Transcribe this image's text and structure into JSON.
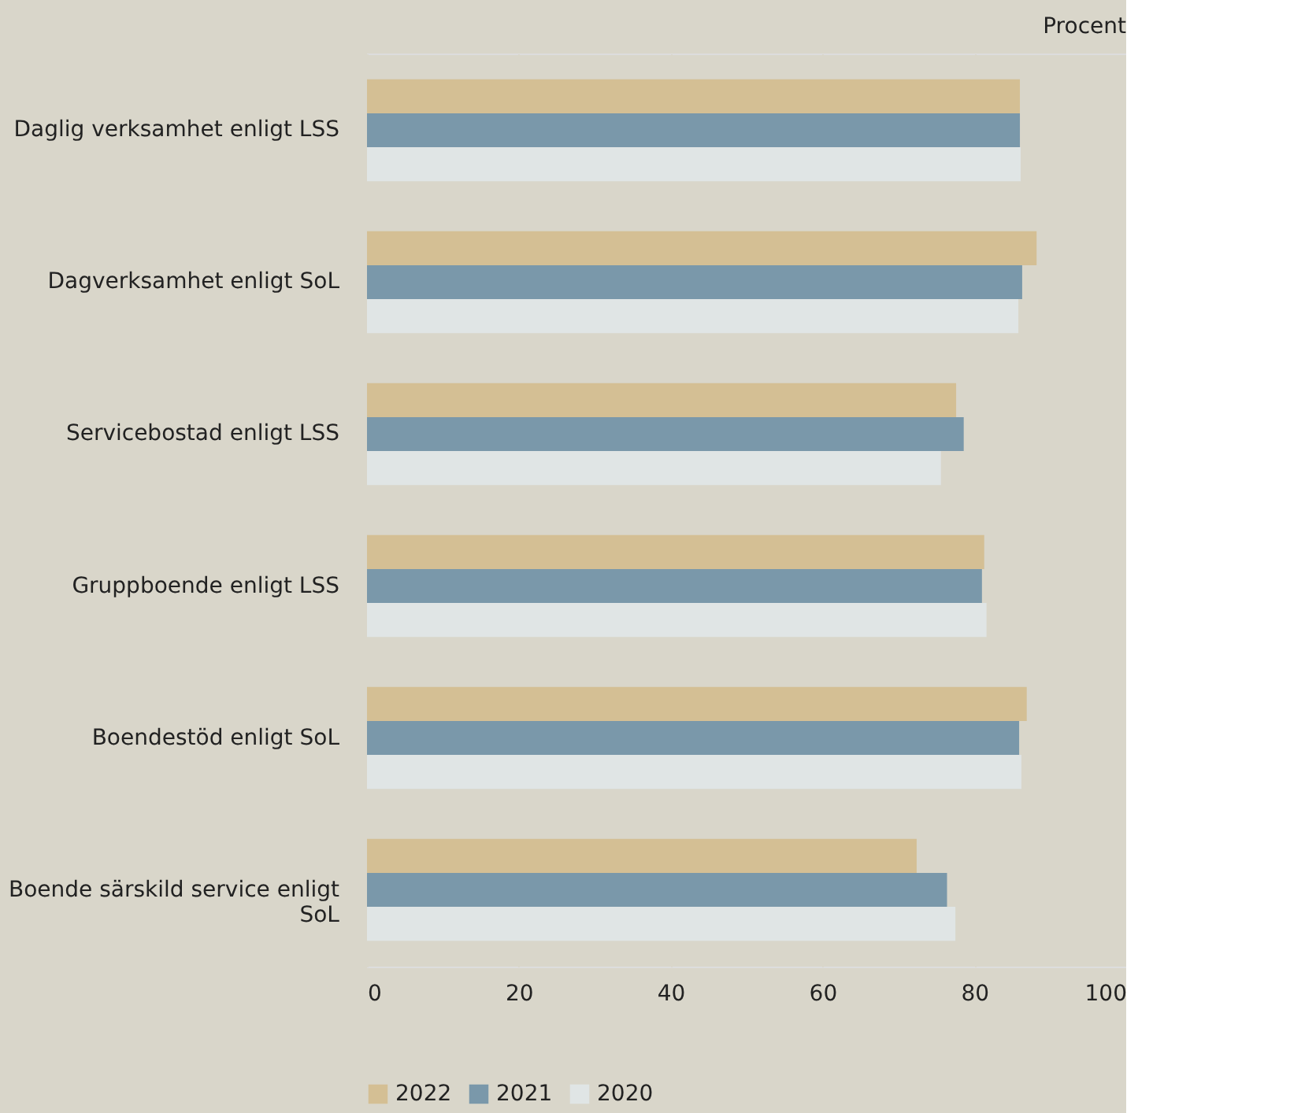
{
  "chart_data": {
    "type": "bar",
    "orientation": "horizontal",
    "annotations": [
      "Procent"
    ],
    "categories": [
      "Daglig verksamhet enligt LSS",
      "Dagverksamhet enligt SoL",
      "Servicebostad enligt LSS",
      "Gruppboende enligt LSS",
      "Boendestöd enligt SoL",
      "Boende särskild service enligt SoL"
    ],
    "series": [
      {
        "name": "2022",
        "color": "#d4bf94",
        "values": [
          86.0,
          88.2,
          77.6,
          81.3,
          86.9,
          72.4
        ]
      },
      {
        "name": "2021",
        "color": "#7a98aa",
        "values": [
          86.0,
          86.3,
          78.6,
          81.0,
          85.9,
          76.4
        ]
      },
      {
        "name": "2020",
        "color": "#e0e5e5",
        "values": [
          86.1,
          85.8,
          75.6,
          81.6,
          86.2,
          77.5
        ]
      }
    ],
    "xlim": [
      0,
      100
    ],
    "xticks": [
      0,
      20,
      40,
      60,
      80,
      100
    ],
    "grid": "x",
    "legend": "bottom"
  }
}
